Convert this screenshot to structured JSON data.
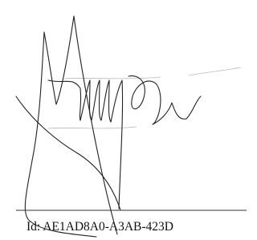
{
  "signature": {
    "id_text": "Id: AE1AD8A0-A3AB-423D"
  }
}
